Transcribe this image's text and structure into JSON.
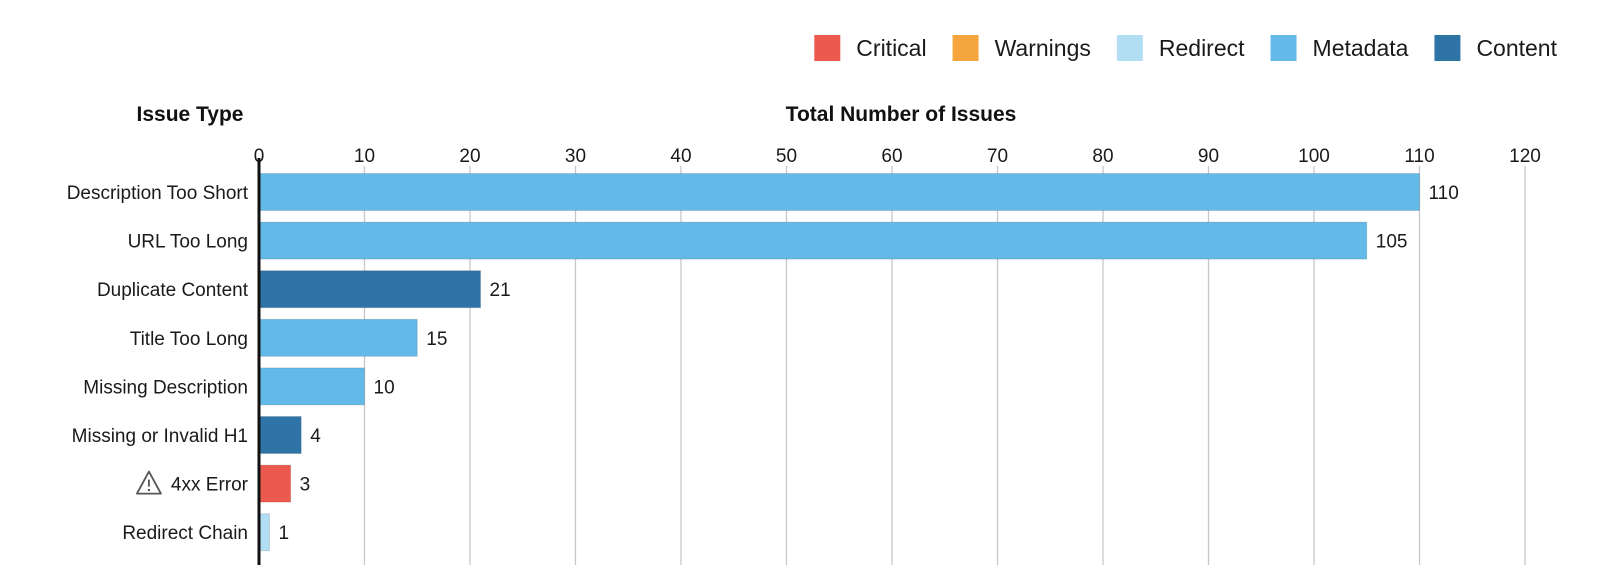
{
  "chart_data": {
    "type": "bar",
    "orientation": "horizontal",
    "categories": [
      "Description Too Short",
      "URL Too Long",
      "Duplicate Content",
      "Title Too Long",
      "Missing Description",
      "Missing or Invalid H1",
      "4xx Error",
      "Redirect Chain"
    ],
    "values": [
      110,
      105,
      21,
      15,
      10,
      4,
      3,
      1
    ],
    "groups": [
      "Metadata",
      "Metadata",
      "Content",
      "Metadata",
      "Metadata",
      "Content",
      "Critical",
      "Redirect"
    ],
    "category_icons": [
      "",
      "",
      "",
      "",
      "",
      "",
      "warning-icon",
      ""
    ],
    "category_header": "Issue Type",
    "xlabel": "Total Number of Issues",
    "xlim": [
      0,
      120
    ],
    "xticks": [
      0,
      10,
      20,
      30,
      40,
      50,
      60,
      70,
      80,
      90,
      100,
      110,
      120
    ],
    "grid": true,
    "legend_position": "top-right",
    "legend": [
      {
        "name": "Critical",
        "color": "#ec5a4f"
      },
      {
        "name": "Warnings",
        "color": "#f5a53d"
      },
      {
        "name": "Redirect",
        "color": "#b2def4"
      },
      {
        "name": "Metadata",
        "color": "#63bae8"
      },
      {
        "name": "Content",
        "color": "#2f74a6"
      }
    ]
  }
}
